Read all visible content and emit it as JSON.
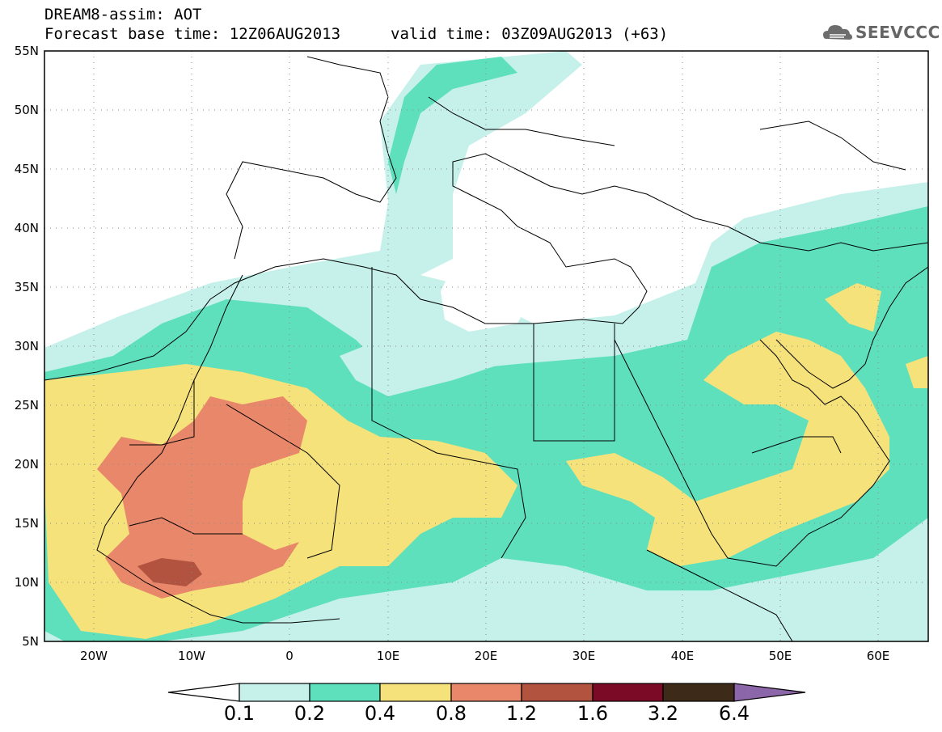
{
  "header": {
    "title": "DREAM8-assim: AOT",
    "base_time": "Forecast base time: 12Z06AUG2013",
    "valid_time": "valid time: 03Z09AUG2013 (+63)"
  },
  "logo": {
    "text": "SEEVCCC",
    "icon": "cloud-icon"
  },
  "map": {
    "lat_labels": [
      "55N",
      "50N",
      "45N",
      "40N",
      "35N",
      "30N",
      "25N",
      "20N",
      "15N",
      "10N",
      "5N"
    ],
    "lon_labels": [
      "20W",
      "10W",
      "0",
      "10E",
      "20E",
      "30E",
      "40E",
      "50E",
      "60E"
    ],
    "grid": "dotted"
  },
  "legend": {
    "levels": [
      "0.1",
      "0.2",
      "0.4",
      "0.8",
      "1.2",
      "1.6",
      "3.2",
      "6.4"
    ],
    "colors": [
      "#ffffff",
      "#c6f1ea",
      "#5ee0bd",
      "#f5e27b",
      "#e8876a",
      "#b2533f",
      "#7a0a25",
      "#3d2a18",
      "#8b66a8"
    ]
  }
}
